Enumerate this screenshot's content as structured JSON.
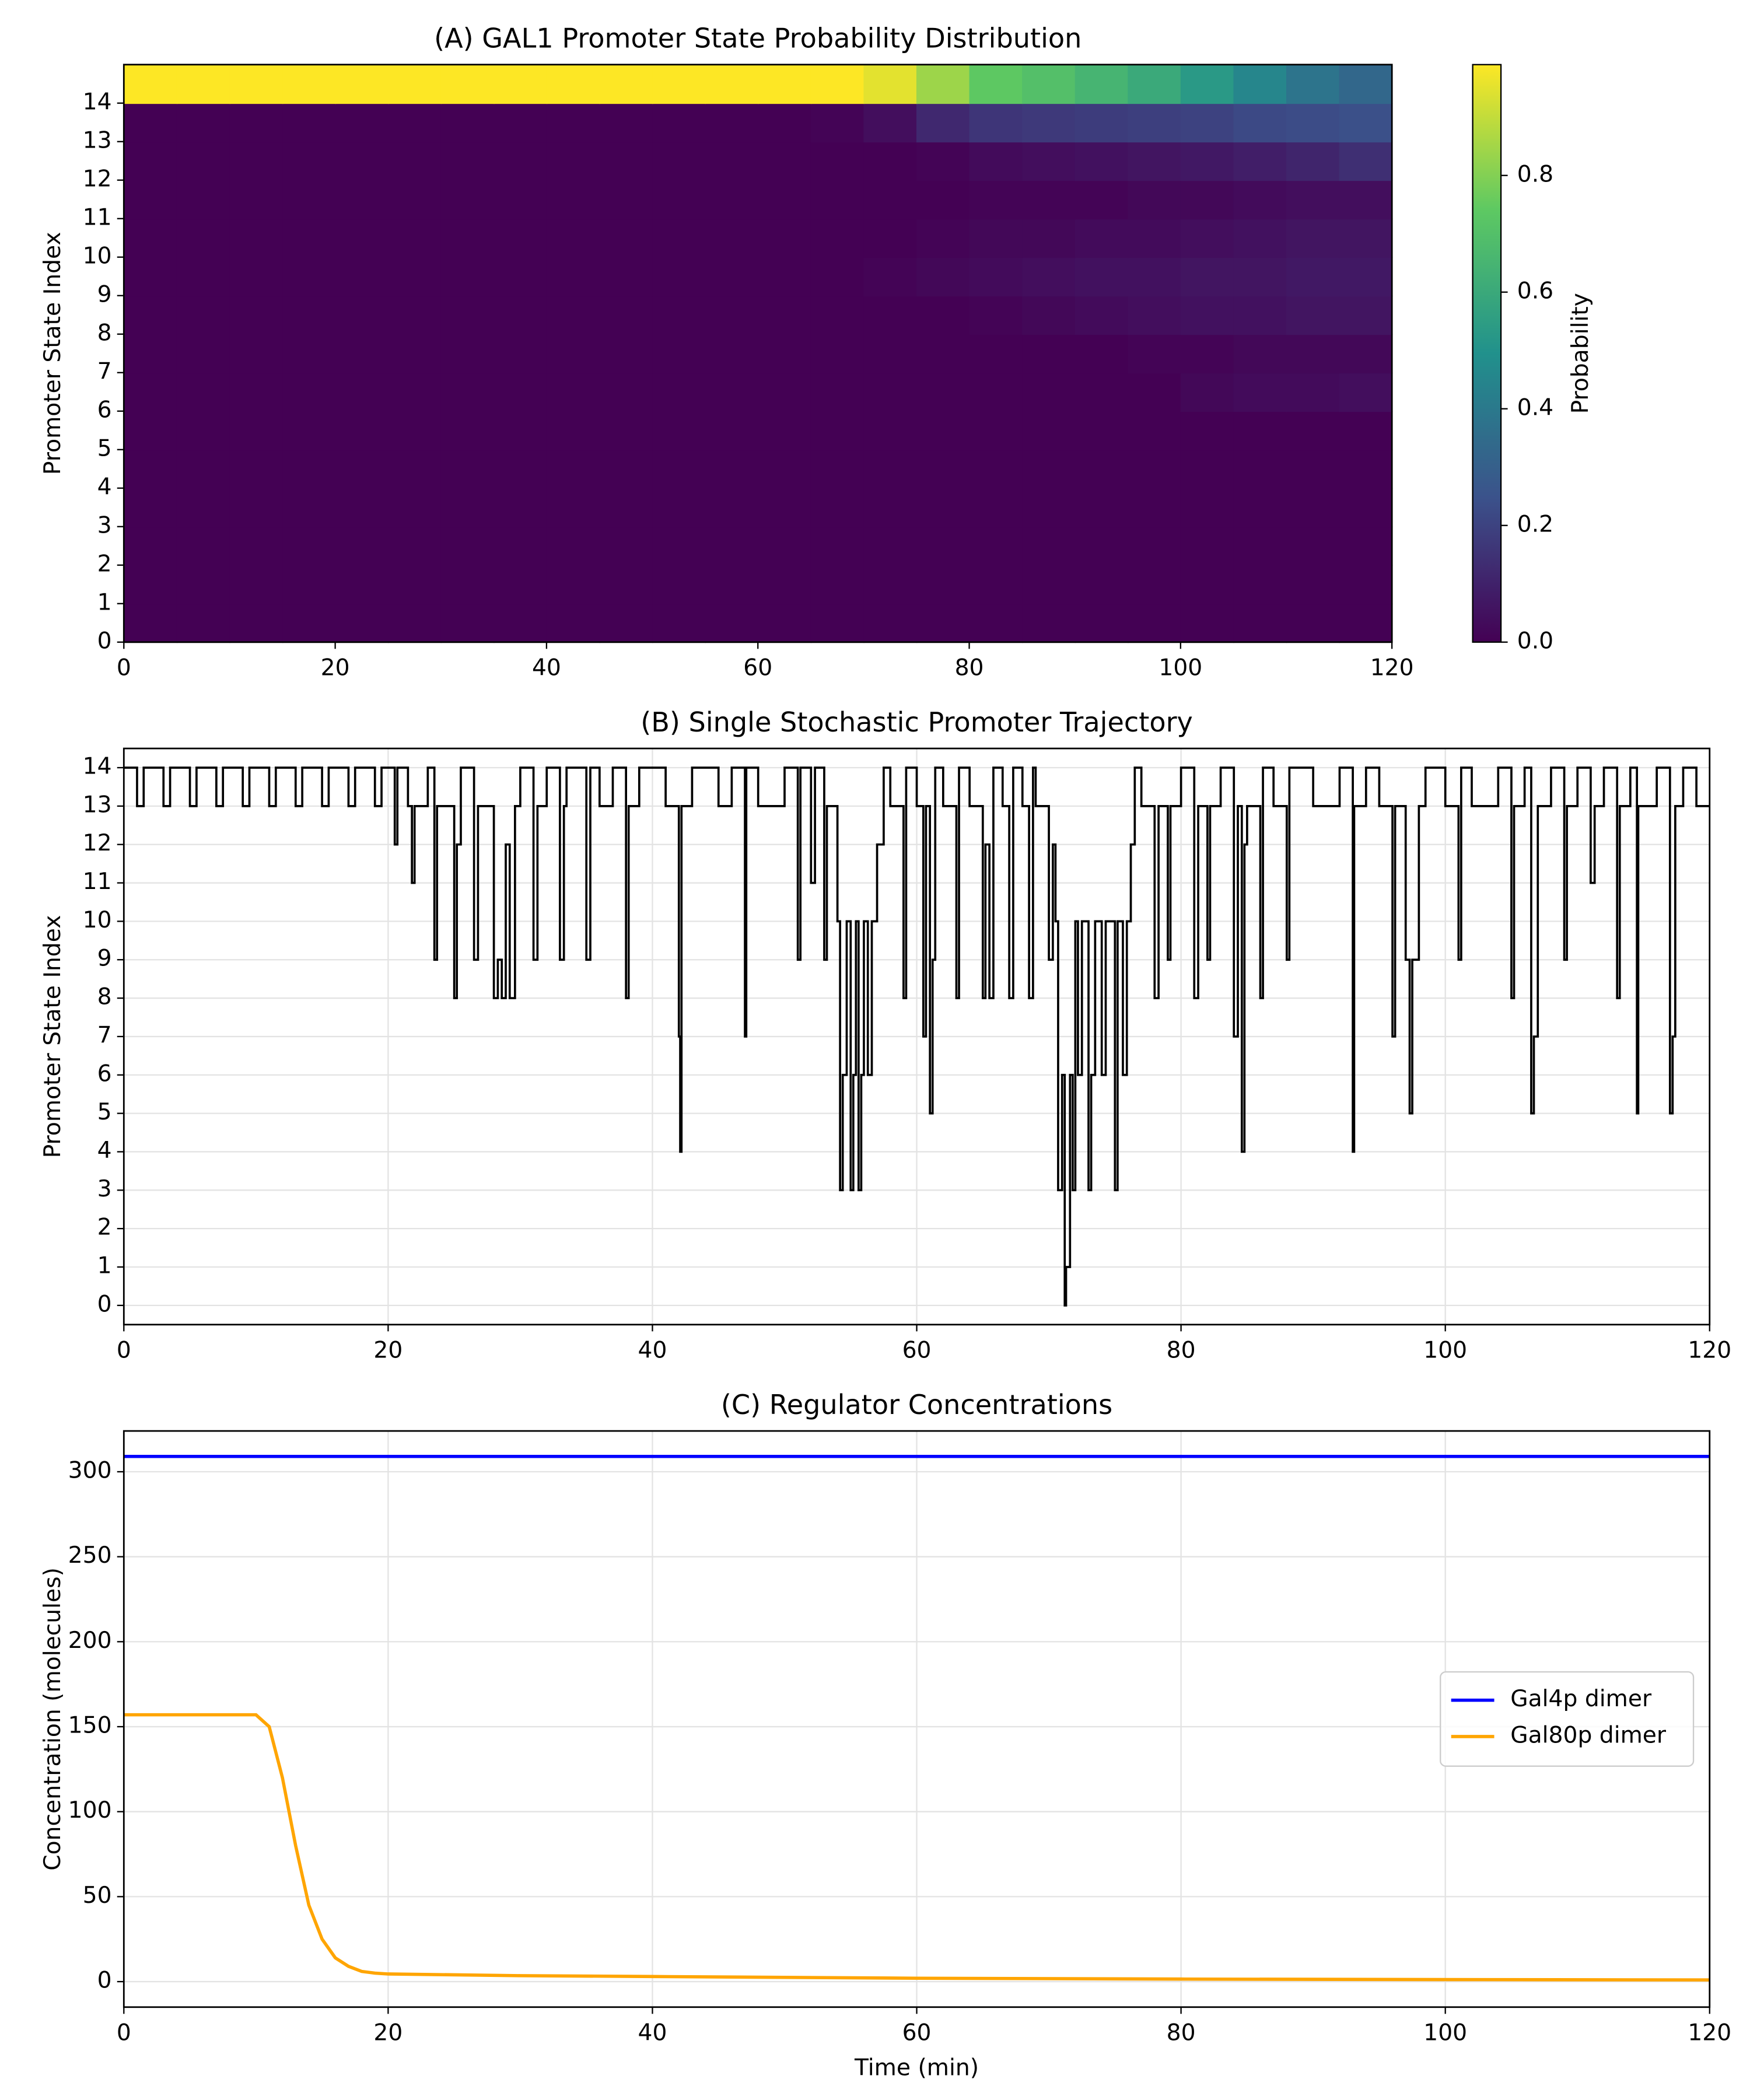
{
  "chart_data": [
    {
      "type": "heatmap",
      "title": "(A) GAL1 Promoter State Probability Distribution",
      "ylabel": "Promoter State Index",
      "x": [
        0,
        5,
        10,
        15,
        20,
        25,
        30,
        35,
        40,
        45,
        50,
        55,
        60,
        65,
        70,
        75,
        80,
        85,
        90,
        95,
        100,
        105,
        110,
        115
      ],
      "y": [
        0,
        1,
        2,
        3,
        4,
        5,
        6,
        7,
        8,
        9,
        10,
        11,
        12,
        13,
        14
      ],
      "z": [
        [
          0,
          0,
          0,
          0,
          0,
          0,
          0,
          0,
          0,
          0,
          0,
          0,
          0,
          0,
          0,
          0,
          0,
          0,
          0,
          0,
          0,
          0,
          0,
          0
        ],
        [
          0,
          0,
          0,
          0,
          0,
          0,
          0,
          0,
          0,
          0,
          0,
          0,
          0,
          0,
          0,
          0,
          0,
          0,
          0,
          0,
          0,
          0,
          0,
          0
        ],
        [
          0,
          0,
          0,
          0,
          0,
          0,
          0,
          0,
          0,
          0,
          0,
          0,
          0,
          0,
          0,
          0,
          0,
          0,
          0,
          0,
          0,
          0,
          0,
          0
        ],
        [
          0,
          0,
          0,
          0,
          0,
          0,
          0,
          0,
          0,
          0,
          0,
          0,
          0,
          0,
          0,
          0,
          0,
          0,
          0,
          0,
          0,
          0,
          0,
          0
        ],
        [
          0,
          0,
          0,
          0,
          0,
          0,
          0,
          0,
          0,
          0,
          0,
          0,
          0,
          0,
          0,
          0,
          0,
          0,
          0,
          0,
          0,
          0,
          0,
          0
        ],
        [
          0,
          0,
          0,
          0,
          0,
          0,
          0,
          0,
          0,
          0,
          0,
          0,
          0,
          0,
          0,
          0,
          0,
          0,
          0,
          0,
          0,
          0,
          0,
          0
        ],
        [
          0,
          0,
          0,
          0,
          0,
          0,
          0,
          0,
          0,
          0,
          0,
          0,
          0,
          0,
          0,
          0,
          0,
          0,
          0,
          0,
          0.02,
          0.03,
          0.03,
          0.04
        ],
        [
          0,
          0,
          0,
          0,
          0,
          0,
          0,
          0,
          0,
          0,
          0,
          0,
          0,
          0,
          0,
          0,
          0,
          0,
          0,
          0.01,
          0.01,
          0.02,
          0.02,
          0.02
        ],
        [
          0,
          0,
          0,
          0,
          0,
          0,
          0,
          0,
          0,
          0,
          0,
          0,
          0,
          0,
          0,
          0,
          0.01,
          0.02,
          0.03,
          0.04,
          0.05,
          0.05,
          0.06,
          0.06
        ],
        [
          0,
          0,
          0,
          0,
          0,
          0,
          0,
          0,
          0,
          0,
          0,
          0,
          0,
          0,
          0.01,
          0.02,
          0.03,
          0.04,
          0.05,
          0.05,
          0.06,
          0.06,
          0.07,
          0.07
        ],
        [
          0,
          0,
          0,
          0,
          0,
          0,
          0,
          0,
          0,
          0,
          0,
          0,
          0,
          0,
          0,
          0.01,
          0.02,
          0.02,
          0.03,
          0.03,
          0.04,
          0.05,
          0.06,
          0.06
        ],
        [
          0,
          0,
          0,
          0,
          0,
          0,
          0,
          0,
          0,
          0,
          0,
          0,
          0,
          0,
          0,
          0,
          0.01,
          0.01,
          0.01,
          0.02,
          0.02,
          0.03,
          0.04,
          0.04
        ],
        [
          0,
          0,
          0,
          0,
          0,
          0,
          0,
          0,
          0,
          0,
          0,
          0,
          0,
          0,
          0,
          0.01,
          0.03,
          0.04,
          0.05,
          0.06,
          0.07,
          0.09,
          0.11,
          0.14
        ],
        [
          0,
          0,
          0,
          0,
          0,
          0,
          0,
          0,
          0,
          0,
          0,
          0,
          0,
          0.01,
          0.04,
          0.12,
          0.16,
          0.17,
          0.18,
          0.19,
          0.2,
          0.22,
          0.23,
          0.24
        ],
        [
          1,
          1,
          1,
          1,
          1,
          1,
          1,
          1,
          1,
          1,
          1,
          1,
          1,
          0.99,
          0.95,
          0.84,
          0.74,
          0.7,
          0.65,
          0.6,
          0.53,
          0.45,
          0.38,
          0.33
        ]
      ],
      "xlim": [
        0,
        120
      ],
      "ylim": [
        0,
        15
      ],
      "xticks": [
        0,
        20,
        40,
        60,
        80,
        100,
        120
      ],
      "yticks": [
        0,
        1,
        2,
        3,
        4,
        5,
        6,
        7,
        8,
        9,
        10,
        11,
        12,
        13,
        14
      ],
      "colorbar": {
        "label": "Probability",
        "colormap": "viridis",
        "clim": [
          0,
          0.99
        ],
        "ticks": [
          {
            "value": 0,
            "label": "0.0"
          },
          0.2,
          0.4,
          0.6,
          0.8
        ]
      }
    },
    {
      "type": "step",
      "title": "(B) Single Stochastic Promoter Trajectory",
      "ylabel": "Promoter State Index",
      "color": "#000000",
      "x": [
        0,
        1,
        1.5,
        3,
        3.5,
        5,
        5.5,
        7,
        7.5,
        9,
        9.5,
        11,
        11.5,
        13,
        13.5,
        15,
        15.5,
        17,
        17.5,
        19,
        19.5,
        20.5,
        20.7,
        21.5,
        21.8,
        22,
        23,
        23.5,
        23.7,
        25,
        25.2,
        25.5,
        26.5,
        26.8,
        28,
        28.3,
        28.6,
        28.9,
        29.2,
        29.6,
        30,
        31,
        31.3,
        32,
        33,
        33.3,
        33.5,
        35,
        35.3,
        36,
        37,
        38,
        38.2,
        39,
        41,
        42,
        42.1,
        42.2,
        43,
        45,
        46,
        47,
        47.1,
        48,
        50,
        51,
        51.2,
        52,
        52.3,
        53,
        53.2,
        54,
        54.2,
        54.4,
        54.7,
        55,
        55.2,
        55.4,
        55.6,
        55.8,
        56,
        56.3,
        56.6,
        57,
        57.5,
        58,
        59,
        59.2,
        60,
        60.5,
        60.7,
        61,
        61.2,
        61.4,
        62,
        63,
        63.2,
        64,
        65,
        65.2,
        65.5,
        65.8,
        66.5,
        67,
        67.3,
        68,
        68.5,
        68.8,
        69,
        70,
        70.3,
        70.5,
        70.7,
        71,
        71.2,
        71.3,
        71.6,
        71.8,
        72,
        72.2,
        72.5,
        73,
        73.2,
        73.5,
        74,
        74.3,
        75,
        75.2,
        75.6,
        75.9,
        76.2,
        76.5,
        77,
        78,
        78.3,
        79,
        79.2,
        80,
        81,
        81.3,
        82,
        82.2,
        83,
        84,
        84.3,
        84.6,
        84.8,
        85,
        86,
        86.2,
        87,
        88,
        88.2,
        90,
        92,
        93,
        93.1,
        94,
        95,
        96,
        96.2,
        97,
        97.3,
        97.5,
        98,
        98.5,
        100,
        101,
        101.2,
        102,
        104,
        105,
        105.2,
        106,
        106.5,
        106.7,
        107,
        108,
        109,
        109.2,
        110,
        111,
        111.3,
        112,
        113,
        113.2,
        114,
        114.5,
        114.6,
        116,
        117,
        117.2,
        117.4,
        118,
        119,
        120
      ],
      "values": [
        14,
        13,
        14,
        13,
        14,
        13,
        14,
        13,
        14,
        13,
        14,
        13,
        14,
        13,
        14,
        13,
        14,
        13,
        14,
        13,
        14,
        12,
        14,
        13,
        11,
        13,
        14,
        9,
        13,
        8,
        12,
        14,
        9,
        13,
        8,
        9,
        8,
        12,
        8,
        13,
        14,
        9,
        13,
        14,
        9,
        13,
        14,
        9,
        14,
        13,
        14,
        8,
        13,
        14,
        13,
        7,
        4,
        13,
        14,
        13,
        14,
        7,
        14,
        13,
        14,
        9,
        14,
        11,
        14,
        9,
        13,
        10,
        3,
        6,
        10,
        3,
        6,
        10,
        3,
        6,
        10,
        6,
        10,
        12,
        14,
        13,
        8,
        14,
        13,
        7,
        13,
        5,
        9,
        14,
        13,
        8,
        14,
        13,
        8,
        12,
        8,
        14,
        13,
        8,
        14,
        13,
        8,
        14,
        13,
        9,
        12,
        10,
        3,
        6,
        0,
        1,
        6,
        3,
        10,
        6,
        10,
        3,
        6,
        10,
        6,
        10,
        3,
        10,
        6,
        10,
        12,
        14,
        13,
        8,
        13,
        9,
        13,
        14,
        8,
        13,
        9,
        13,
        14,
        7,
        13,
        4,
        12,
        13,
        8,
        14,
        13,
        9,
        14,
        13,
        14,
        4,
        13,
        14,
        13,
        7,
        13,
        9,
        5,
        9,
        13,
        14,
        13,
        9,
        14,
        13,
        14,
        8,
        13,
        14,
        5,
        7,
        13,
        14,
        9,
        13,
        14,
        11,
        13,
        14,
        8,
        13,
        14,
        5,
        13,
        14,
        5,
        7,
        13,
        14,
        13,
        13
      ],
      "xlim": [
        0,
        120
      ],
      "ylim": [
        -0.5,
        14.5
      ],
      "xticks": [
        0,
        20,
        40,
        60,
        80,
        100,
        120
      ],
      "yticks": [
        0,
        1,
        2,
        3,
        4,
        5,
        6,
        7,
        8,
        9,
        10,
        11,
        12,
        13,
        14
      ],
      "grid": true
    },
    {
      "type": "line",
      "title": "(C) Regulator Concentrations",
      "xlabel": "Time (min)",
      "ylabel": "Concentration (molecules)",
      "x": [
        0,
        5,
        10,
        11,
        12,
        13,
        14,
        15,
        16,
        17,
        18,
        19,
        20,
        30,
        40,
        60,
        80,
        100,
        120
      ],
      "series": [
        {
          "name": "Gal4p dimer",
          "color": "#0000ff",
          "values": [
            309,
            309,
            309,
            309,
            309,
            309,
            309,
            309,
            309,
            309,
            309,
            309,
            309,
            309,
            309,
            309,
            309,
            309,
            309
          ]
        },
        {
          "name": "Gal80p dimer",
          "color": "#ffa500",
          "values": [
            157,
            157,
            157,
            150,
            120,
            80,
            45,
            25,
            14,
            9,
            6,
            5,
            4.5,
            3.5,
            3,
            2,
            1.5,
            1.2,
            1
          ]
        }
      ],
      "xlim": [
        0,
        120
      ],
      "ylim": [
        -15,
        324
      ],
      "xticks": [
        0,
        20,
        40,
        60,
        80,
        100,
        120
      ],
      "yticks": [
        0,
        50,
        100,
        150,
        200,
        250,
        300
      ],
      "grid": true,
      "legend": "center right"
    }
  ]
}
